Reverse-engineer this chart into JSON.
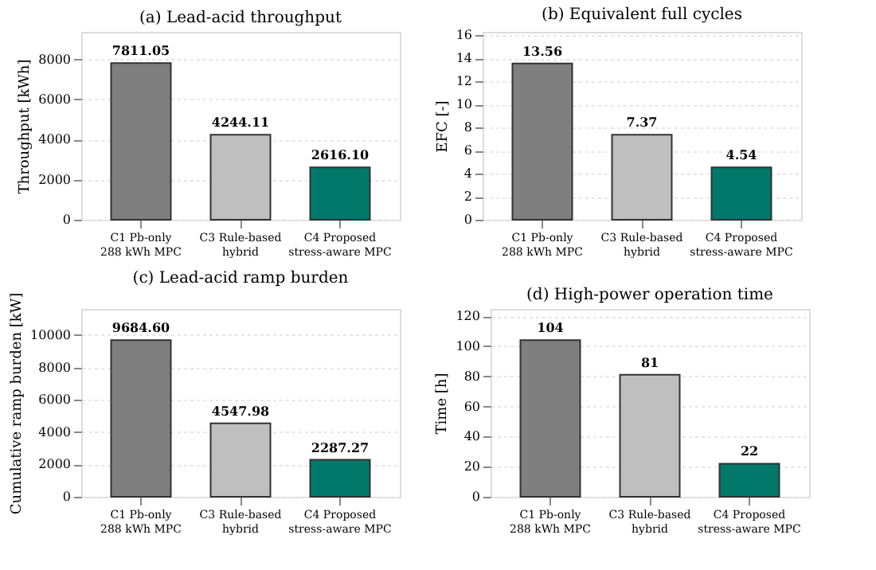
{
  "chart_data": [
    {
      "type": "bar",
      "title": "(a) Lead-acid throughput",
      "ylabel": "Throughput [kWh]",
      "categories": [
        "C1 Pb-only\n288 kWh MPC",
        "C3 Rule-based\nhybrid",
        "C4 Proposed\nstress-aware MPC"
      ],
      "values": [
        7811.05,
        4244.11,
        2616.1
      ],
      "value_labels": [
        "7811.05",
        "4244.11",
        "2616.10"
      ],
      "colors": [
        "#7f7f7f",
        "#bfbfbf",
        "#00796b"
      ],
      "ylim": [
        0,
        9373
      ],
      "yticks": [
        0,
        2000,
        4000,
        6000,
        8000
      ],
      "grid": "y"
    },
    {
      "type": "bar",
      "title": "(b) Equivalent full cycles",
      "ylabel": "EFC [-]",
      "categories": [
        "C1 Pb-only\n288 kWh MPC",
        "C3 Rule-based\nhybrid",
        "C4 Proposed\nstress-aware MPC"
      ],
      "values": [
        13.56,
        7.37,
        4.54
      ],
      "data_labels": true,
      "colors": [
        "#7f7f7f",
        "#bfbfbf",
        "#00796b"
      ],
      "ylim": [
        0,
        16.3
      ],
      "yticks": [
        0,
        2,
        4,
        6,
        8,
        10,
        12,
        14,
        16
      ],
      "grid": "y"
    },
    {
      "type": "bar",
      "title": "(c) Lead-acid ramp burden",
      "ylabel": "Cumulative ramp burden [kW]",
      "categories": [
        "C1 Pb-only\n288 kWh MPC",
        "C3 Rule-based\nhybrid",
        "C4 Proposed\nstress-aware MPC"
      ],
      "values": [
        9684.6,
        4547.98,
        2287.27
      ],
      "value_labels": [
        "9684.60",
        "4547.98",
        "2287.27"
      ],
      "colors": [
        "#7f7f7f",
        "#bfbfbf",
        "#00796b"
      ],
      "ylim": [
        0,
        11621
      ],
      "yticks": [
        0,
        2000,
        4000,
        6000,
        8000,
        10000
      ],
      "grid": "y"
    },
    {
      "type": "bar",
      "title": "(d) High-power operation time",
      "ylabel": "Time [h]",
      "categories": [
        "C1 Pb-only\n288 kWh MPC",
        "C3 Rule-based\nhybrid",
        "C4 Proposed\nstress-aware MPC"
      ],
      "values": [
        104,
        81,
        22
      ],
      "data_labels": true,
      "colors": [
        "#7f7f7f",
        "#bfbfbf",
        "#00796b"
      ],
      "ylim": [
        0,
        124.8
      ],
      "yticks": [
        0,
        20,
        40,
        60,
        80,
        100,
        120
      ],
      "grid": "y"
    }
  ]
}
